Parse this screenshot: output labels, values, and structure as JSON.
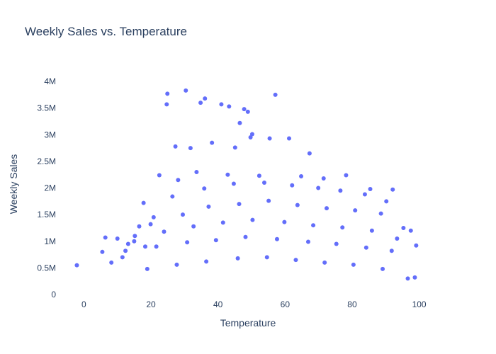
{
  "chart_data": {
    "type": "scatter",
    "title": "Weekly Sales vs. Temperature",
    "xlabel": "Temperature",
    "ylabel": "Weekly Sales",
    "xlim": [
      -6,
      106
    ],
    "ylim": [
      0,
      4200000
    ],
    "x_ticks": [
      {
        "value": 0,
        "label": "0"
      },
      {
        "value": 20,
        "label": "20"
      },
      {
        "value": 40,
        "label": "40"
      },
      {
        "value": 60,
        "label": "60"
      },
      {
        "value": 80,
        "label": "80"
      },
      {
        "value": 100,
        "label": "100"
      }
    ],
    "y_ticks": [
      {
        "value": 0,
        "label": "0"
      },
      {
        "value": 500000,
        "label": "0.5M"
      },
      {
        "value": 1000000,
        "label": "1M"
      },
      {
        "value": 1500000,
        "label": "1.5M"
      },
      {
        "value": 2000000,
        "label": "2M"
      },
      {
        "value": 2500000,
        "label": "2.5M"
      },
      {
        "value": 3000000,
        "label": "3M"
      },
      {
        "value": 3500000,
        "label": "3.5M"
      },
      {
        "value": 4000000,
        "label": "4M"
      }
    ],
    "grid": false,
    "legend": "none",
    "marker_color": "#636efa",
    "series": [
      {
        "x": [
          -2.1,
          5.5,
          6.4,
          8.2,
          10.0,
          11.5,
          13.2,
          15.0,
          16.5,
          18.3,
          19.9,
          24.7,
          24.9,
          30.4,
          34.8,
          36.1,
          41.0,
          43.3,
          46.5,
          47.8,
          48.9,
          50.2,
          57.1,
          27.3,
          31.8,
          38.2,
          45.1,
          49.7,
          55.4,
          61.2,
          67.3,
          22.5,
          28.1,
          33.6,
          42.9,
          52.3,
          64.8,
          71.5,
          78.2,
          85.4,
          92.1,
          17.8,
          26.4,
          35.9,
          44.7,
          53.8,
          62.1,
          69.9,
          76.5,
          83.8,
          90.2,
          97.5,
          20.8,
          29.5,
          37.2,
          46.3,
          55.1,
          63.7,
          72.4,
          80.9,
          88.6,
          95.3,
          15.2,
          23.9,
          32.7,
          41.5,
          50.3,
          59.8,
          68.4,
          77.1,
          85.9,
          93.4,
          99.1,
          12.4,
          21.6,
          30.8,
          39.4,
          48.2,
          57.6,
          66.9,
          75.3,
          84.2,
          91.8,
          98.7,
          18.9,
          27.7,
          36.5,
          45.9,
          54.6,
          63.2,
          71.8,
          80.4,
          89.1,
          96.6
        ],
        "y": [
          550000,
          800000,
          1070000,
          600000,
          1050000,
          700000,
          950000,
          1000000,
          1280000,
          900000,
          1320000,
          3570000,
          3770000,
          3830000,
          3600000,
          3680000,
          3570000,
          3530000,
          3220000,
          3480000,
          3430000,
          3010000,
          3750000,
          2780000,
          2750000,
          2850000,
          2760000,
          2950000,
          2930000,
          2930000,
          2650000,
          2240000,
          2150000,
          2300000,
          2250000,
          2230000,
          2220000,
          2180000,
          2240000,
          1980000,
          1970000,
          1720000,
          1840000,
          1990000,
          2080000,
          2100000,
          2050000,
          2000000,
          1950000,
          1880000,
          1750000,
          1200000,
          1450000,
          1500000,
          1650000,
          1700000,
          1760000,
          1680000,
          1620000,
          1580000,
          1520000,
          1250000,
          1100000,
          1180000,
          1280000,
          1350000,
          1400000,
          1360000,
          1300000,
          1260000,
          1200000,
          1050000,
          920000,
          820000,
          900000,
          980000,
          1020000,
          1080000,
          1040000,
          990000,
          950000,
          880000,
          820000,
          320000,
          480000,
          560000,
          620000,
          680000,
          700000,
          650000,
          600000,
          560000,
          480000,
          300000
        ]
      }
    ]
  }
}
